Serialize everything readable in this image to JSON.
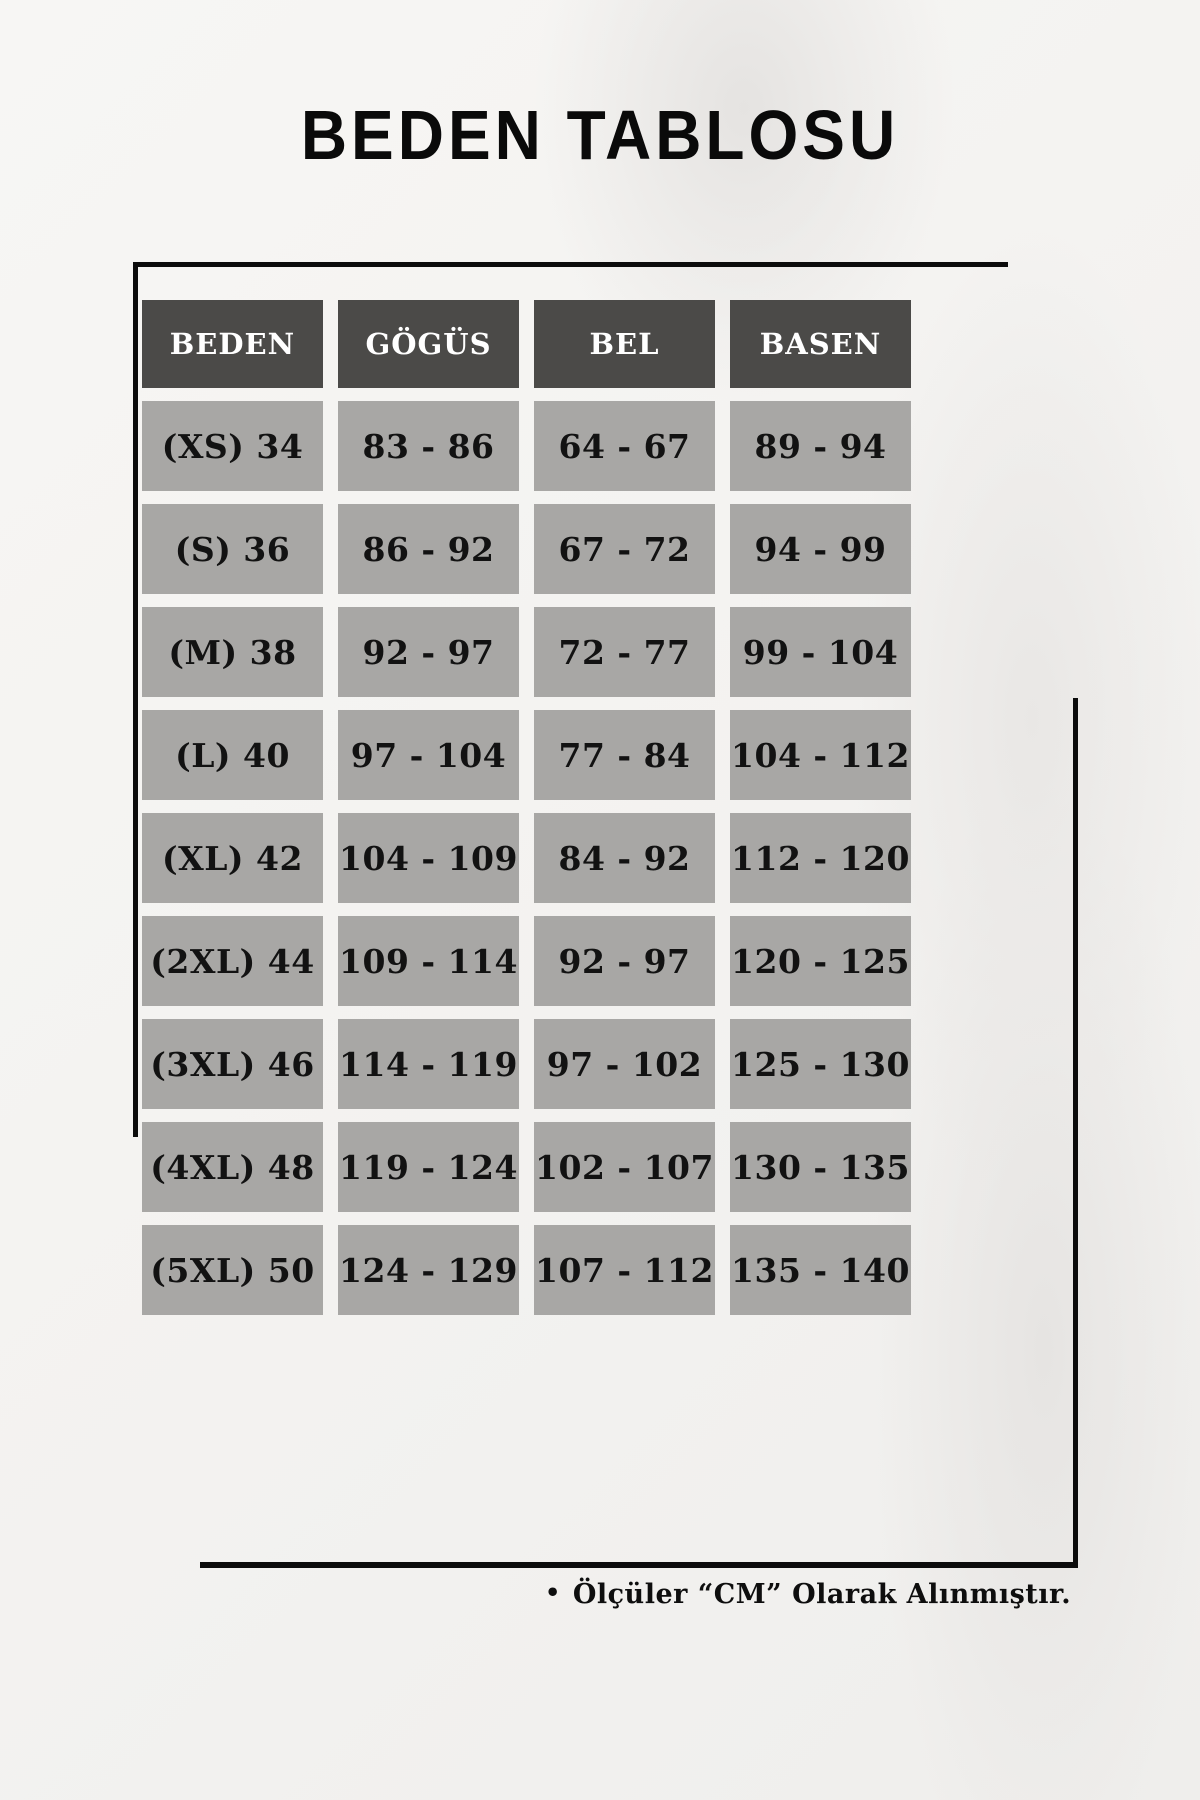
{
  "title": "BEDEN TABLOSU",
  "table": {
    "headers": [
      "BEDEN",
      "GÖGÜS",
      "BEL",
      "BASEN"
    ],
    "rows": [
      {
        "cells": [
          "(XS) 34",
          "83 - 86",
          "64 - 67",
          "89 - 94"
        ]
      },
      {
        "cells": [
          "(S) 36",
          "86 - 92",
          "67 - 72",
          "94 - 99"
        ]
      },
      {
        "cells": [
          "(M) 38",
          "92 - 97",
          "72 - 77",
          "99 - 104"
        ]
      },
      {
        "cells": [
          "(L) 40",
          "97 - 104",
          "77 - 84",
          "104 - 112"
        ]
      },
      {
        "cells": [
          "(XL) 42",
          "104 - 109",
          "84 - 92",
          "112 - 120"
        ]
      },
      {
        "cells": [
          "(2XL) 44",
          "109 - 114",
          "92 - 97",
          "120 - 125"
        ]
      },
      {
        "cells": [
          "(3XL) 46",
          "114 - 119",
          "97 - 102",
          "125 - 130"
        ]
      },
      {
        "cells": [
          "(4XL) 48",
          "119 - 124",
          "102 - 107",
          "130 - 135"
        ]
      },
      {
        "cells": [
          "(5XL) 50",
          "124 - 129",
          "107 - 112",
          "135 - 140"
        ]
      }
    ]
  },
  "footer": {
    "bullet": "•",
    "note": "Ölçüler “CM” Olarak Alınmıştır."
  },
  "colors": {
    "header-bg": "#4b4a48",
    "cell-bg": "#a8a7a5",
    "text": "#121212",
    "header-text": "#ffffff",
    "page-bg": "#f4f3f1",
    "line": "#0c0c0c"
  }
}
